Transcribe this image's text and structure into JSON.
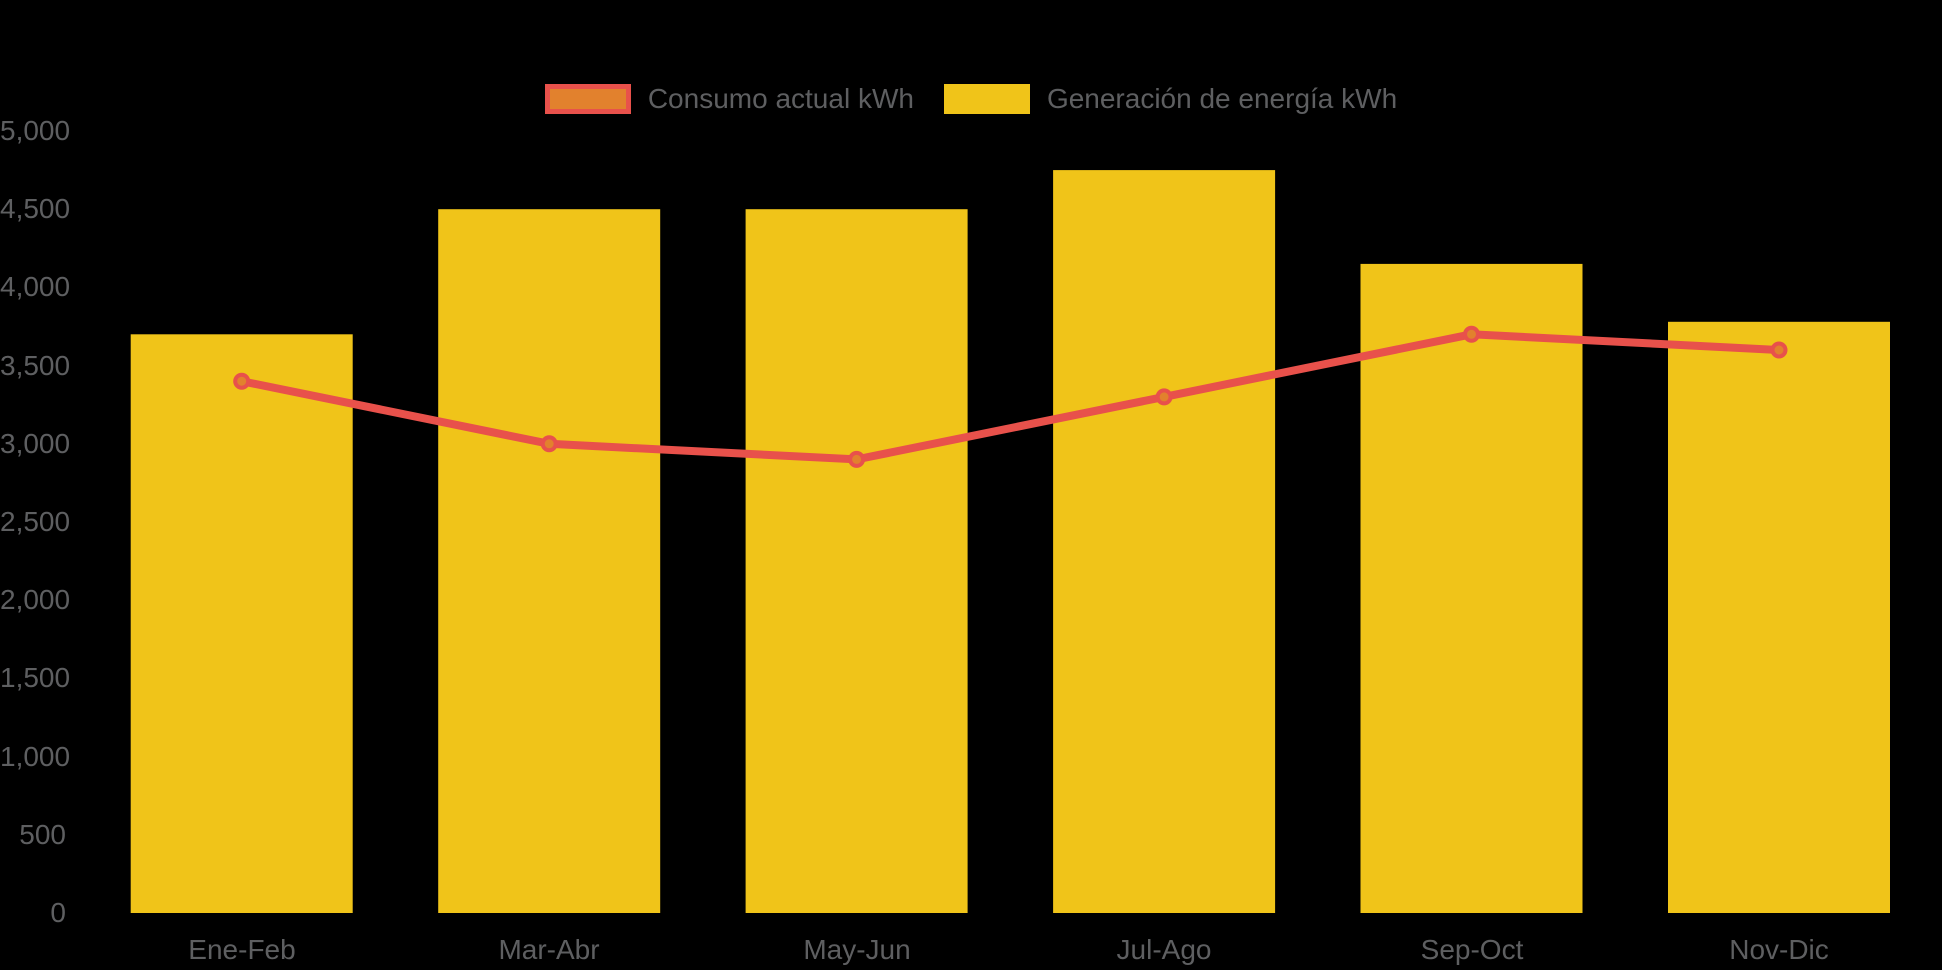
{
  "page": {
    "background_color": "#000000",
    "text_color": "#5E5F61"
  },
  "legend": {
    "position": "top-center",
    "items": [
      {
        "id": "consumo",
        "label": "Consumo actual kWh",
        "swatch_fill": "#E2812D",
        "swatch_border": "#E8514B"
      },
      {
        "id": "generacion",
        "label": "Generación de energía kWh",
        "swatch_fill": "#F0C419",
        "swatch_border": "#F0C419"
      }
    ]
  },
  "chart_data": {
    "type": "combo",
    "categories": [
      "Ene-Feb",
      "Mar-Abr",
      "May-Jun",
      "Jul-Ago",
      "Sep-Oct",
      "Nov-Dic"
    ],
    "series": [
      {
        "name": "Generación de energía kWh",
        "type": "bar",
        "color": "#F0C419",
        "values": [
          3700,
          4500,
          4500,
          4750,
          4150,
          3780
        ]
      },
      {
        "name": "Consumo actual kWh",
        "type": "line",
        "color": "#E8514B",
        "marker_color": "#E2812D",
        "values": [
          3400,
          3000,
          2900,
          3300,
          3700,
          3600
        ]
      }
    ],
    "title": "",
    "xlabel": "",
    "ylabel": "",
    "ylim": [
      0,
      5000
    ],
    "ytick_step": 500,
    "ytick_labels": [
      "0",
      "500",
      "1,000",
      "1,500",
      "2,000",
      "2,500",
      "3,000",
      "3,500",
      "4,000",
      "4,500",
      "5,000"
    ],
    "grid": false,
    "legend_position": "top"
  }
}
